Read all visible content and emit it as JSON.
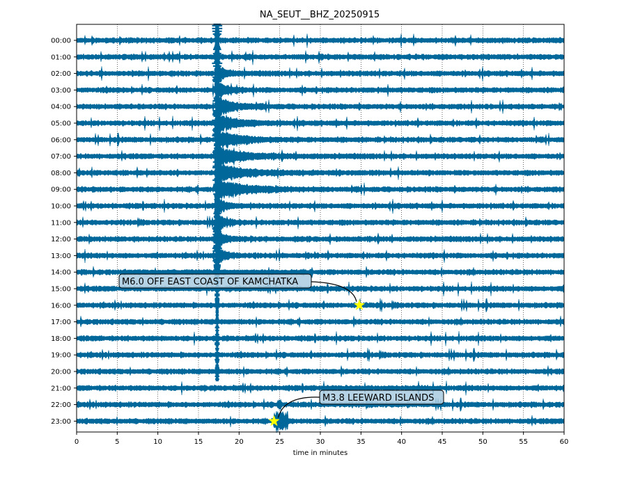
{
  "chart_data": {
    "type": "line",
    "title": "NA_SEUT__BHZ_20250915",
    "xlabel": "time in minutes",
    "ylabel": "",
    "xlim": [
      0,
      60
    ],
    "x_ticks": [
      "0",
      "5",
      "10",
      "15",
      "20",
      "25",
      "30",
      "35",
      "40",
      "45",
      "50",
      "55",
      "60"
    ],
    "rows": [
      "00:00",
      "01:00",
      "02:00",
      "03:00",
      "04:00",
      "05:00",
      "06:00",
      "07:00",
      "08:00",
      "09:00",
      "10:00",
      "11:00",
      "12:00",
      "13:00",
      "14:00",
      "15:00",
      "16:00",
      "17:00",
      "18:00",
      "19:00",
      "20:00",
      "21:00",
      "22:00",
      "23:00"
    ],
    "grid": "vertical dotted at each x tick",
    "trace_color": "#00679a",
    "events": [
      {
        "label": "M6.0 OFF EAST COAST OF KAMCHATKA",
        "row": "16:00",
        "minute": 34.8
      },
      {
        "label": "M3.8 LEEWARD ISLANDS",
        "row": "23:00",
        "minute": 24.3
      }
    ],
    "marker_color": "#ffff00",
    "annotation_box_color": "#a9cbe0"
  }
}
